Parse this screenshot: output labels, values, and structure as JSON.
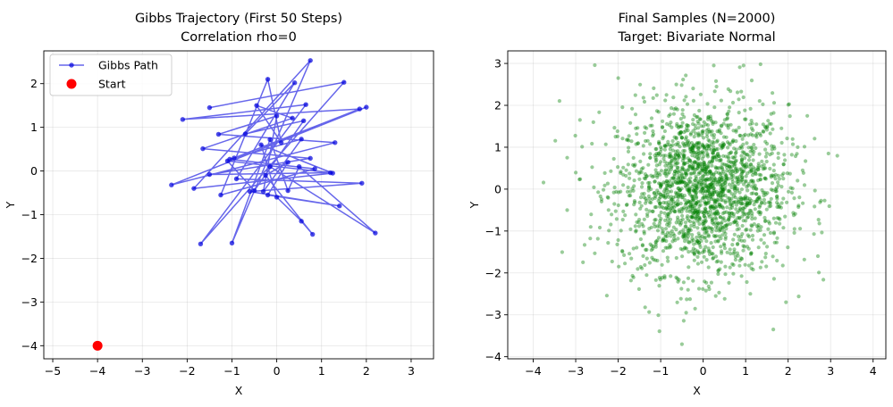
{
  "colors": {
    "path": "#0000dd",
    "start": "#ff0000",
    "samples": "#008000"
  },
  "chart_data": [
    {
      "type": "line",
      "title_lines": [
        "Gibbs Trajectory (First 50 Steps)",
        "Correlation rho=0"
      ],
      "xlabel": "X",
      "ylabel": "Y",
      "xlim": [
        -5.2,
        3.5
      ],
      "ylim": [
        -4.3,
        2.75
      ],
      "xticks": [
        -5,
        -4,
        -3,
        -2,
        -1,
        0,
        1,
        2,
        3
      ],
      "yticks": [
        -4,
        -3,
        -2,
        -1,
        0,
        1,
        2
      ],
      "grid": true,
      "legend": {
        "position": "top-left",
        "entries": [
          "Gibbs Path",
          "Start"
        ]
      },
      "series": [
        {
          "name": "Gibbs Path",
          "marker": "circle",
          "points": [
            [
              -1.5,
              1.45
            ],
            [
              1.5,
              2.03
            ],
            [
              -1.7,
              -1.67
            ],
            [
              0.65,
              1.52
            ],
            [
              -2.1,
              1.18
            ],
            [
              1.85,
              1.42
            ],
            [
              -0.95,
              0.3
            ],
            [
              2.0,
              1.46
            ],
            [
              -2.35,
              -0.32
            ],
            [
              1.3,
              0.65
            ],
            [
              -1.3,
              0.84
            ],
            [
              0.0,
              1.26
            ],
            [
              -0.3,
              -0.47
            ],
            [
              0.55,
              0.73
            ],
            [
              -1.05,
              0.27
            ],
            [
              0.85,
              0.05
            ],
            [
              -1.25,
              -0.55
            ],
            [
              -0.2,
              2.1
            ],
            [
              0.1,
              0.65
            ],
            [
              -0.45,
              1.5
            ],
            [
              0.35,
              1.21
            ],
            [
              -1.65,
              0.51
            ],
            [
              0.75,
              0.29
            ],
            [
              -1.5,
              -0.08
            ],
            [
              1.2,
              -0.04
            ],
            [
              -1.1,
              0.23
            ],
            [
              -0.5,
              -0.45
            ],
            [
              0.6,
              1.15
            ],
            [
              -0.7,
              0.85
            ],
            [
              0.4,
              2.02
            ],
            [
              -0.9,
              -0.18
            ],
            [
              1.9,
              -0.28
            ],
            [
              -0.6,
              -0.47
            ],
            [
              1.4,
              -0.8
            ],
            [
              -0.2,
              -0.55
            ],
            [
              0.25,
              0.2
            ],
            [
              -0.25,
              -0.1
            ],
            [
              0.8,
              -1.45
            ],
            [
              0.55,
              -1.15
            ],
            [
              0.0,
              -0.6
            ],
            [
              -0.35,
              0.6
            ],
            [
              1.25,
              -0.05
            ],
            [
              -1.85,
              -0.4
            ],
            [
              0.75,
              2.53
            ],
            [
              -1.0,
              -1.65
            ],
            [
              -0.15,
              0.72
            ],
            [
              0.25,
              -0.45
            ],
            [
              0.5,
              0.1
            ],
            [
              2.2,
              -1.42
            ],
            [
              -0.15,
              0.1
            ]
          ]
        },
        {
          "name": "Start",
          "marker": "circle",
          "points": [
            [
              -4.0,
              -4.0
            ]
          ]
        }
      ]
    },
    {
      "type": "scatter",
      "title_lines": [
        "Final Samples (N=2000)",
        "Target: Bivariate Normal"
      ],
      "xlabel": "X",
      "ylabel": "Y",
      "xlim": [
        -4.6,
        4.3
      ],
      "ylim": [
        -4.05,
        3.3
      ],
      "xticks": [
        -4,
        -3,
        -2,
        -1,
        0,
        1,
        2,
        3,
        4
      ],
      "yticks": [
        -4,
        -3,
        -2,
        -1,
        0,
        1,
        2,
        3
      ],
      "grid": true,
      "distribution": {
        "n": 2000,
        "mean": [
          0,
          0
        ],
        "sd": [
          1,
          1
        ],
        "rho": 0
      },
      "series": [
        {
          "name": "Samples",
          "alpha": 0.4,
          "notable_points": [
            [
              -2.55,
              2.96
            ],
            [
              -0.5,
              -3.7
            ],
            [
              1.35,
              2.98
            ],
            [
              2.95,
              0.85
            ],
            [
              -3.2,
              -0.5
            ],
            [
              1.65,
              -3.35
            ],
            [
              -2.0,
              2.65
            ],
            [
              2.7,
              -1.6
            ],
            [
              0.95,
              2.95
            ],
            [
              1.95,
              -2.7
            ],
            [
              -0.4,
              -2.95
            ],
            [
              0.25,
              2.95
            ],
            [
              2.45,
              1.75
            ],
            [
              -3.2,
              0.75
            ],
            [
              -2.9,
              1.65
            ]
          ]
        }
      ]
    }
  ]
}
